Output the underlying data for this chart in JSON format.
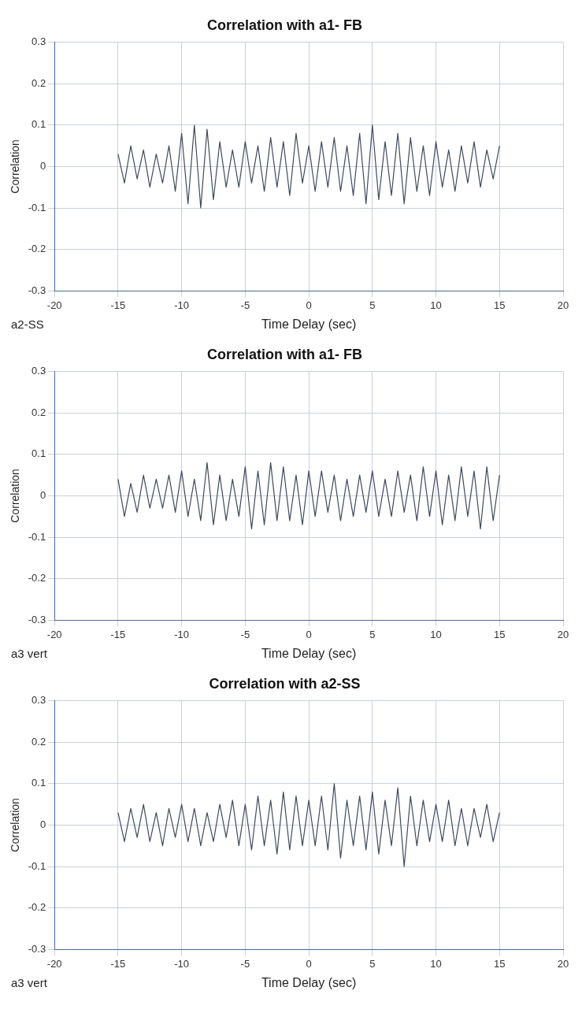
{
  "chart_data": [
    {
      "type": "line",
      "title": "Correlation with a1- FB",
      "xlabel": "Time Delay (sec)",
      "ylabel": "Correlation",
      "annotations": [
        "a2-SS"
      ],
      "color": "#3d4b5c",
      "xlim": [
        -20,
        20
      ],
      "xticks": [
        -20,
        -15,
        -10,
        -5,
        0,
        5,
        10,
        15,
        20
      ],
      "ylim": [
        -0.3,
        0.3
      ],
      "yticks": [
        -0.3,
        -0.2,
        -0.1,
        0,
        0.1,
        0.2,
        0.3
      ],
      "grid": true,
      "x": [
        -15,
        -14.5,
        -14,
        -13.5,
        -13,
        -12.5,
        -12,
        -11.5,
        -11,
        -10.5,
        -10,
        -9.5,
        -9,
        -8.5,
        -8,
        -7.5,
        -7,
        -6.5,
        -6,
        -5.5,
        -5,
        -4.5,
        -4,
        -3.5,
        -3,
        -2.5,
        -2,
        -1.5,
        -1,
        -0.5,
        0,
        0.5,
        1,
        1.5,
        2,
        2.5,
        3,
        3.5,
        4,
        4.5,
        5,
        5.5,
        6,
        6.5,
        7,
        7.5,
        8,
        8.5,
        9,
        9.5,
        10,
        10.5,
        11,
        11.5,
        12,
        12.5,
        13,
        13.5,
        14,
        14.5,
        15
      ],
      "values": [
        0.03,
        -0.04,
        0.05,
        -0.03,
        0.04,
        -0.05,
        0.03,
        -0.04,
        0.05,
        -0.06,
        0.08,
        -0.09,
        0.1,
        -0.1,
        0.09,
        -0.08,
        0.06,
        -0.05,
        0.04,
        -0.05,
        0.06,
        -0.04,
        0.05,
        -0.06,
        0.07,
        -0.05,
        0.06,
        -0.07,
        0.08,
        -0.04,
        0.05,
        -0.06,
        0.06,
        -0.05,
        0.07,
        -0.06,
        0.05,
        -0.07,
        0.08,
        -0.09,
        0.1,
        -0.08,
        0.06,
        -0.07,
        0.08,
        -0.09,
        0.07,
        -0.06,
        0.05,
        -0.07,
        0.06,
        -0.05,
        0.04,
        -0.06,
        0.05,
        -0.04,
        0.06,
        -0.05,
        0.04,
        -0.03,
        0.05
      ]
    },
    {
      "type": "line",
      "title": "Correlation with a1- FB",
      "xlabel": "Time Delay (sec)",
      "ylabel": "Correlation",
      "annotations": [
        "a3 vert"
      ],
      "color": "#3d4b5c",
      "xlim": [
        -20,
        20
      ],
      "xticks": [
        -20,
        -15,
        -10,
        -5,
        0,
        5,
        10,
        15,
        20
      ],
      "ylim": [
        -0.3,
        0.3
      ],
      "yticks": [
        -0.3,
        -0.2,
        -0.1,
        0,
        0.1,
        0.2,
        0.3
      ],
      "grid": true,
      "x": [
        -15,
        -14.5,
        -14,
        -13.5,
        -13,
        -12.5,
        -12,
        -11.5,
        -11,
        -10.5,
        -10,
        -9.5,
        -9,
        -8.5,
        -8,
        -7.5,
        -7,
        -6.5,
        -6,
        -5.5,
        -5,
        -4.5,
        -4,
        -3.5,
        -3,
        -2.5,
        -2,
        -1.5,
        -1,
        -0.5,
        0,
        0.5,
        1,
        1.5,
        2,
        2.5,
        3,
        3.5,
        4,
        4.5,
        5,
        5.5,
        6,
        6.5,
        7,
        7.5,
        8,
        8.5,
        9,
        9.5,
        10,
        10.5,
        11,
        11.5,
        12,
        12.5,
        13,
        13.5,
        14,
        14.5,
        15
      ],
      "values": [
        0.04,
        -0.05,
        0.03,
        -0.04,
        0.05,
        -0.03,
        0.04,
        -0.03,
        0.05,
        -0.04,
        0.06,
        -0.05,
        0.04,
        -0.06,
        0.08,
        -0.07,
        0.05,
        -0.06,
        0.04,
        -0.05,
        0.07,
        -0.08,
        0.06,
        -0.07,
        0.08,
        -0.06,
        0.07,
        -0.06,
        0.05,
        -0.07,
        0.06,
        -0.05,
        0.06,
        -0.04,
        0.05,
        -0.06,
        0.04,
        -0.05,
        0.05,
        -0.04,
        0.06,
        -0.05,
        0.04,
        -0.05,
        0.06,
        -0.04,
        0.05,
        -0.06,
        0.07,
        -0.05,
        0.06,
        -0.07,
        0.05,
        -0.06,
        0.07,
        -0.05,
        0.06,
        -0.08,
        0.07,
        -0.06,
        0.05
      ]
    },
    {
      "type": "line",
      "title": "Correlation with a2-SS",
      "xlabel": "Time Delay (sec)",
      "ylabel": "Correlation",
      "annotations": [
        "a3 vert"
      ],
      "color": "#3d4b5c",
      "xlim": [
        -20,
        20
      ],
      "xticks": [
        -20,
        -15,
        -10,
        -5,
        0,
        5,
        10,
        15,
        20
      ],
      "ylim": [
        -0.3,
        0.3
      ],
      "yticks": [
        -0.3,
        -0.2,
        -0.1,
        0,
        0.1,
        0.2,
        0.3
      ],
      "grid": true,
      "x": [
        -15,
        -14.5,
        -14,
        -13.5,
        -13,
        -12.5,
        -12,
        -11.5,
        -11,
        -10.5,
        -10,
        -9.5,
        -9,
        -8.5,
        -8,
        -7.5,
        -7,
        -6.5,
        -6,
        -5.5,
        -5,
        -4.5,
        -4,
        -3.5,
        -3,
        -2.5,
        -2,
        -1.5,
        -1,
        -0.5,
        0,
        0.5,
        1,
        1.5,
        2,
        2.5,
        3,
        3.5,
        4,
        4.5,
        5,
        5.5,
        6,
        6.5,
        7,
        7.5,
        8,
        8.5,
        9,
        9.5,
        10,
        10.5,
        11,
        11.5,
        12,
        12.5,
        13,
        13.5,
        14,
        14.5,
        15
      ],
      "values": [
        0.03,
        -0.04,
        0.04,
        -0.03,
        0.05,
        -0.04,
        0.03,
        -0.05,
        0.04,
        -0.03,
        0.05,
        -0.04,
        0.04,
        -0.05,
        0.03,
        -0.04,
        0.05,
        -0.03,
        0.06,
        -0.05,
        0.05,
        -0.06,
        0.07,
        -0.05,
        0.06,
        -0.07,
        0.08,
        -0.06,
        0.07,
        -0.05,
        0.06,
        -0.05,
        0.07,
        -0.06,
        0.1,
        -0.08,
        0.06,
        -0.05,
        0.07,
        -0.06,
        0.08,
        -0.07,
        0.06,
        -0.05,
        0.09,
        -0.1,
        0.07,
        -0.05,
        0.06,
        -0.04,
        0.05,
        -0.04,
        0.06,
        -0.05,
        0.04,
        -0.05,
        0.04,
        -0.03,
        0.05,
        -0.04,
        0.03
      ]
    }
  ]
}
